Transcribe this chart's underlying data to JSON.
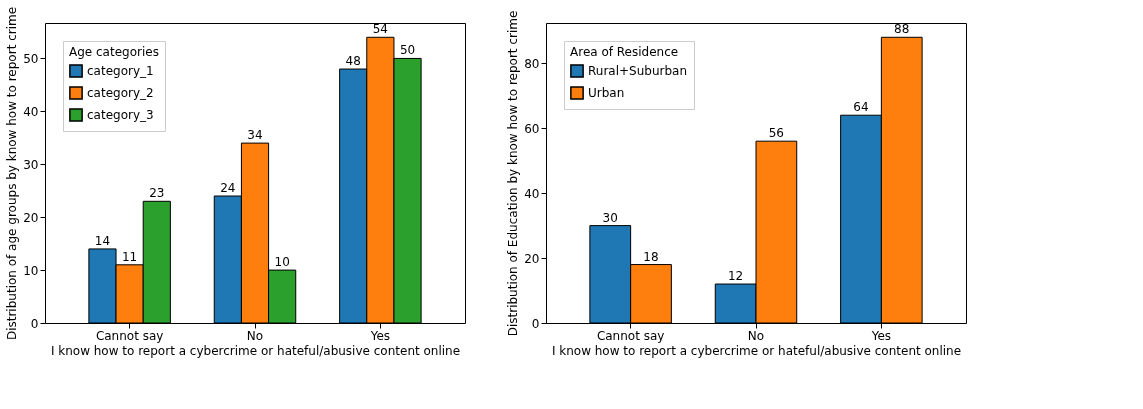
{
  "chart_data": [
    {
      "type": "bar",
      "xlabel": "I know how to report a cybercrime or hateful/abusive content online",
      "ylabel": "Distribution of age groups by know how to report crime",
      "legend_title": "Age categories",
      "categories": [
        "Cannot say",
        "No",
        "Yes"
      ],
      "series": [
        {
          "name": "category_1",
          "color": "#1f77b4",
          "values": [
            14,
            24,
            48
          ]
        },
        {
          "name": "category_2",
          "color": "#ff7f0e",
          "values": [
            11,
            34,
            54
          ]
        },
        {
          "name": "category_3",
          "color": "#2ca02c",
          "values": [
            23,
            10,
            50
          ]
        }
      ],
      "ylim": [
        0,
        56.7
      ],
      "yticks": [
        0,
        10,
        20,
        30,
        40,
        50
      ],
      "grid": false,
      "legend": "top left",
      "data_labels": true
    },
    {
      "type": "bar",
      "xlabel": "I know how to report a cybercrime or hateful/abusive content online",
      "ylabel": "Distribution of Education by know how to report crime",
      "legend_title": "Area of Residence",
      "categories": [
        "Cannot say",
        "No",
        "Yes"
      ],
      "series": [
        {
          "name": "Rural+Suburban",
          "color": "#1f77b4",
          "values": [
            30,
            12,
            64
          ]
        },
        {
          "name": "Urban",
          "color": "#ff7f0e",
          "values": [
            18,
            56,
            88
          ]
        }
      ],
      "ylim": [
        0,
        92.4
      ],
      "yticks": [
        0,
        20,
        40,
        60,
        80
      ],
      "grid": false,
      "legend": "top left",
      "data_labels": true
    }
  ]
}
